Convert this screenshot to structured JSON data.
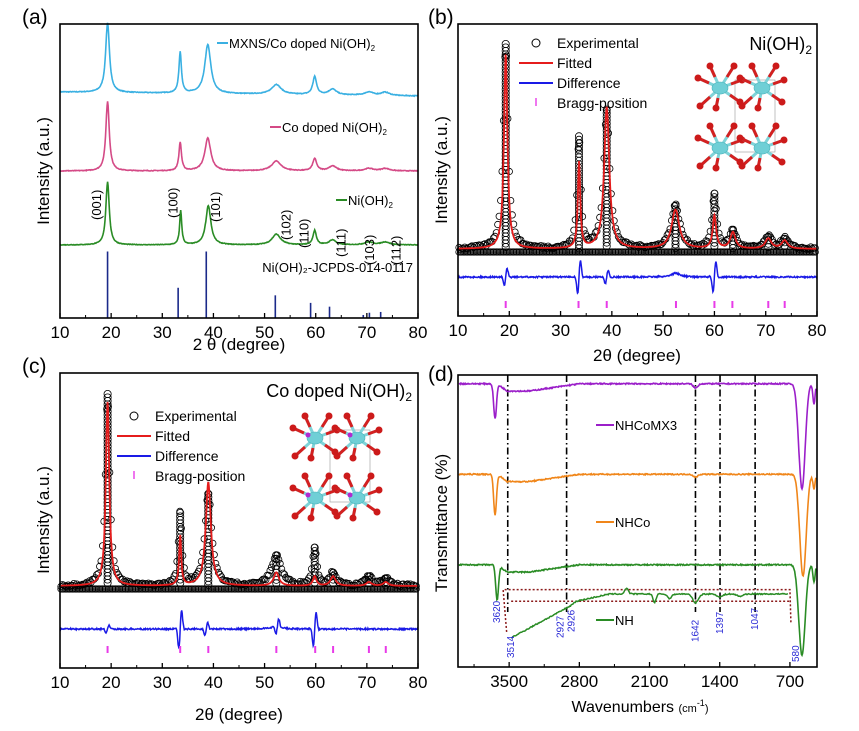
{
  "figure": {
    "panel_labels": [
      "(a)",
      "(b)",
      "(c)",
      "(d)"
    ]
  },
  "chart_data": [
    {
      "id": "a",
      "type": "line",
      "title": "",
      "panel_label": "(a)",
      "xlabel": "2 θ (degree)",
      "ylabel": "Intensity (a.u.)",
      "xlim": [
        10,
        80
      ],
      "xticks": [
        10,
        20,
        30,
        40,
        50,
        60,
        70,
        80
      ],
      "ylim": [
        0,
        4
      ],
      "grid": false,
      "series": [
        {
          "name": "MXNS/Co doped Ni(OH)₂",
          "color": "#3ab0e2",
          "offset": 3.0,
          "baseline_tilt": -0.05,
          "peaks": [
            [
              19.3,
              0.85,
              0.45
            ],
            [
              33.5,
              0.5,
              0.3
            ],
            [
              38.9,
              0.6,
              0.7
            ],
            [
              52.3,
              0.12,
              1.1
            ],
            [
              59.8,
              0.22,
              0.45
            ],
            [
              63.3,
              0.07,
              0.9
            ],
            [
              70.4,
              0.04,
              1.0
            ],
            [
              73.6,
              0.04,
              1.0
            ]
          ]
        },
        {
          "name": "Co doped Ni(OH)₂",
          "color": "#d44a86",
          "offset": 2.0,
          "baseline_tilt": 0.0,
          "peaks": [
            [
              19.3,
              0.85,
              0.4
            ],
            [
              33.5,
              0.35,
              0.3
            ],
            [
              38.9,
              0.4,
              0.7
            ],
            [
              52.3,
              0.12,
              1.1
            ],
            [
              59.8,
              0.15,
              0.45
            ],
            [
              63.3,
              0.06,
              0.9
            ],
            [
              70.4,
              0.03,
              1.0
            ],
            [
              73.6,
              0.03,
              1.0
            ]
          ]
        },
        {
          "name": "Ni(OH)₂",
          "color": "#2a8c25",
          "offset": 1.0,
          "baseline_tilt": 0.0,
          "peaks": [
            [
              19.3,
              0.88,
              0.4
            ],
            [
              33.6,
              0.48,
              0.25
            ],
            [
              39.0,
              0.55,
              0.6
            ],
            [
              52.3,
              0.15,
              1.0
            ],
            [
              59.8,
              0.2,
              0.4
            ],
            [
              63.3,
              0.07,
              0.8
            ],
            [
              70.4,
              0.04,
              1.0
            ],
            [
              73.6,
              0.04,
              1.0
            ]
          ]
        }
      ],
      "reference": {
        "name": "Ni(OH)₂-JCPDS-014-0117",
        "color": "#1b2a8a",
        "lines": [
          [
            19.3,
            0.88
          ],
          [
            33.1,
            0.4
          ],
          [
            38.6,
            0.88
          ],
          [
            52.1,
            0.3
          ],
          [
            59.0,
            0.2
          ],
          [
            62.7,
            0.15
          ],
          [
            69.3,
            0.04
          ],
          [
            70.5,
            0.07
          ],
          [
            72.7,
            0.08
          ]
        ]
      },
      "hkl_labels": [
        {
          "text": "(001)",
          "x": 17.2
        },
        {
          "text": "(100)",
          "x": 32.2
        },
        {
          "text": "(101)",
          "x": 40.5
        },
        {
          "text": "(102)",
          "x": 54.3
        },
        {
          "text": "(110)",
          "x": 57.8
        },
        {
          "text": "(111)",
          "x": 65.0
        },
        {
          "text": "(103)",
          "x": 70.6
        },
        {
          "text": "(112)",
          "x": 75.8
        }
      ],
      "legend": [
        {
          "label": "MXNS/Co doped Ni(OH)",
          "sub": "2",
          "color": "#3ab0e2"
        },
        {
          "label": "Co doped Ni(OH)",
          "sub": "2",
          "color": "#d44a86"
        },
        {
          "label": "Ni(OH)",
          "sub": "2",
          "color": "#2a8c25"
        }
      ],
      "legend_placement": "right-of-each-trace"
    },
    {
      "id": "b",
      "type": "line",
      "panel_label": "(b)",
      "title": "Ni(OH)₂",
      "xlabel": "2θ  (degree)",
      "ylabel": "Intensity (a.u.)",
      "xlim": [
        10,
        80
      ],
      "xticks": [
        10,
        20,
        30,
        40,
        50,
        60,
        70,
        80
      ],
      "grid": false,
      "experimental_peaks": [
        [
          19.3,
          1.0,
          0.55
        ],
        [
          33.6,
          0.55,
          0.4
        ],
        [
          39.0,
          0.68,
          0.7
        ],
        [
          52.4,
          0.21,
          1.0
        ],
        [
          60.0,
          0.27,
          0.5
        ],
        [
          63.6,
          0.09,
          0.7
        ],
        [
          70.5,
          0.06,
          0.8
        ],
        [
          73.7,
          0.05,
          0.8
        ]
      ],
      "fitted_peaks": [
        [
          19.3,
          0.95,
          0.4
        ],
        [
          33.6,
          0.42,
          0.28
        ],
        [
          39.0,
          0.69,
          0.6
        ],
        [
          52.4,
          0.19,
          0.9
        ],
        [
          60.0,
          0.16,
          0.4
        ],
        [
          63.6,
          0.08,
          0.6
        ],
        [
          70.5,
          0.05,
          0.7
        ],
        [
          73.7,
          0.04,
          0.7
        ]
      ],
      "difference_spikes": [
        [
          19.3,
          0.06
        ],
        [
          33.6,
          0.12
        ],
        [
          39.0,
          0.05
        ],
        [
          60.0,
          0.11
        ]
      ],
      "bragg_positions": [
        19.3,
        33.5,
        39.0,
        52.5,
        60.0,
        63.5,
        70.5,
        73.7
      ],
      "legend": [
        {
          "label": "Experimental",
          "kind": "circle",
          "color": "#000000"
        },
        {
          "label": "Fitted",
          "kind": "line",
          "color": "#e51c1c"
        },
        {
          "label": "Difference",
          "kind": "line",
          "color": "#1a1ae6"
        },
        {
          "label": "Bragg-position",
          "kind": "tick",
          "color": "#e83be8"
        }
      ],
      "legend_placement": "top-center",
      "inset": "Ni(OH)₂ crystal structure"
    },
    {
      "id": "c",
      "type": "line",
      "panel_label": "(c)",
      "title": "Co doped Ni(OH)₂",
      "xlabel": "2θ  (degree)",
      "ylabel": "Intensity (a.u.)",
      "xlim": [
        10,
        80
      ],
      "xticks": [
        10,
        20,
        30,
        40,
        50,
        60,
        70,
        80
      ],
      "grid": false,
      "experimental_peaks": [
        [
          19.3,
          1.0,
          0.5
        ],
        [
          33.5,
          0.38,
          0.4
        ],
        [
          39.0,
          0.48,
          0.8
        ],
        [
          52.3,
          0.16,
          1.1
        ],
        [
          59.8,
          0.2,
          0.5
        ],
        [
          63.4,
          0.07,
          0.7
        ],
        [
          70.4,
          0.05,
          0.8
        ],
        [
          73.7,
          0.04,
          0.8
        ]
      ],
      "fitted_peaks": [
        [
          19.3,
          0.96,
          0.4
        ],
        [
          33.5,
          0.26,
          0.25
        ],
        [
          39.0,
          0.54,
          0.6
        ],
        [
          52.3,
          0.07,
          0.6
        ],
        [
          59.8,
          0.05,
          0.4
        ],
        [
          63.4,
          0.05,
          0.6
        ],
        [
          70.4,
          0.02,
          0.6
        ],
        [
          73.7,
          0.02,
          0.6
        ]
      ],
      "difference_spikes": [
        [
          19.3,
          0.03
        ],
        [
          33.5,
          0.15
        ],
        [
          38.6,
          0.05
        ],
        [
          52.5,
          0.06
        ],
        [
          59.8,
          0.13
        ]
      ],
      "bragg_positions": [
        19.3,
        33.5,
        39.0,
        52.3,
        59.9,
        63.4,
        70.4,
        73.7
      ],
      "legend": [
        {
          "label": "Experimental",
          "kind": "circle",
          "color": "#000000"
        },
        {
          "label": "Fitted",
          "kind": "line",
          "color": "#e51c1c"
        },
        {
          "label": "Difference",
          "kind": "line",
          "color": "#1a1ae6"
        },
        {
          "label": "Bragg-position",
          "kind": "tick",
          "color": "#e83be8"
        }
      ],
      "legend_placement": "top-center",
      "inset": "Co doped Ni(OH)₂ crystal structure"
    },
    {
      "id": "d",
      "type": "line",
      "panel_label": "(d)",
      "title": "",
      "xlabel": "Wavenumbers (cm⁻¹)",
      "xlabel_main": "Wavenumbers ",
      "xlabel_unit": "(cm",
      "xlabel_sup": "-1",
      "xlabel_close": ")",
      "ylabel": "Transmittance (%)",
      "xlim": [
        4010,
        430
      ],
      "xticks": [
        3500,
        2800,
        2100,
        1400,
        700
      ],
      "grid": false,
      "reference_lines": [
        3514,
        2927,
        1642,
        1397,
        1047
      ],
      "series": [
        {
          "name": "NHCoMX3",
          "color": "#9b1fc9",
          "level": 0.97,
          "dips": [
            [
              3640,
              0.12,
              20
            ],
            [
              1642,
              0.015,
              30
            ],
            [
              580,
              0.36,
              45
            ],
            [
              460,
              0.07,
              15
            ]
          ]
        },
        {
          "name": "NHCo",
          "color": "#f0861a",
          "level": 0.66,
          "dips": [
            [
              3640,
              0.14,
              20
            ],
            [
              1642,
              0.01,
              30
            ],
            [
              570,
              0.35,
              45
            ],
            [
              460,
              0.05,
              15
            ]
          ]
        },
        {
          "name": "NH",
          "color": "#2a8c25",
          "level": 0.35,
          "dips": [
            [
              3620,
              0.12,
              20
            ],
            [
              580,
              0.31,
              45
            ],
            [
              460,
              0.06,
              15
            ]
          ]
        }
      ],
      "zoom_inset_trace": {
        "name": "NH (magnified)",
        "color": "#2a8c25"
      },
      "peak_annotations": [
        {
          "text": "3620",
          "x": 3620
        },
        {
          "text": "3514",
          "x": 3480
        },
        {
          "text": "2927",
          "x": 2990
        },
        {
          "text": "2926",
          "x": 2880
        },
        {
          "text": "1642",
          "x": 1642
        },
        {
          "text": "1397",
          "x": 1397
        },
        {
          "text": "1047",
          "x": 1047
        },
        {
          "text": "580",
          "x": 640
        }
      ],
      "annotation_color": "#2b2bd6",
      "legend": [
        {
          "label": "NHCoMX3",
          "color": "#9b1fc9"
        },
        {
          "label": "NHCo",
          "color": "#f0861a"
        },
        {
          "label": "NH",
          "color": "#2a8c25"
        }
      ],
      "legend_placement": "inline-center"
    }
  ]
}
